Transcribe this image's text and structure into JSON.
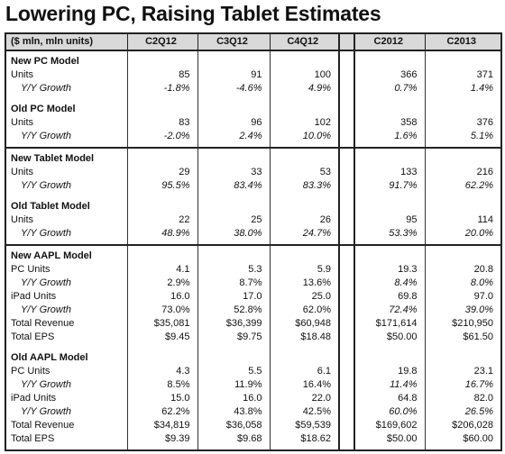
{
  "title": "Lowering PC, Raising Tablet Estimates",
  "header": {
    "label": "($ mln, mln units)",
    "columns": [
      "C2Q12",
      "C3Q12",
      "C4Q12",
      "C2012",
      "C2013"
    ]
  },
  "groups": [
    {
      "sections": [
        {
          "title": "New PC Model",
          "rows": [
            {
              "label": "Units",
              "values": [
                "85",
                "91",
                "100",
                "366",
                "371"
              ],
              "growth": {
                "label": "Y/Y Growth",
                "values": [
                  "-1.8%",
                  "-4.6%",
                  "4.9%",
                  "0.7%",
                  "1.4%"
                ]
              }
            }
          ]
        },
        {
          "title": "Old PC Model",
          "rows": [
            {
              "label": "Units",
              "values": [
                "83",
                "96",
                "102",
                "358",
                "376"
              ],
              "growth": {
                "label": "Y/Y Growth",
                "values": [
                  "-2.0%",
                  "2.4%",
                  "10.0%",
                  "1.6%",
                  "5.1%"
                ]
              }
            }
          ]
        }
      ]
    },
    {
      "sections": [
        {
          "title": "New Tablet Model",
          "rows": [
            {
              "label": "Units",
              "values": [
                "29",
                "33",
                "53",
                "133",
                "216"
              ],
              "growth": {
                "label": "Y/Y Growth",
                "values": [
                  "95.5%",
                  "83.4%",
                  "83.3%",
                  "91.7%",
                  "62.2%"
                ]
              }
            }
          ]
        },
        {
          "title": "Old Tablet Model",
          "rows": [
            {
              "label": "Units",
              "values": [
                "22",
                "25",
                "26",
                "95",
                "114"
              ],
              "growth": {
                "label": "Y/Y Growth",
                "values": [
                  "48.9%",
                  "38.0%",
                  "24.7%",
                  "53.3%",
                  "20.0%"
                ]
              }
            }
          ]
        }
      ]
    },
    {
      "sections": [
        {
          "title": "New AAPL Model",
          "rows": [
            {
              "label": "PC Units",
              "values": [
                "4.1",
                "5.3",
                "5.9",
                "19.3",
                "20.8"
              ],
              "growth": {
                "label": "Y/Y Growth",
                "values": [
                  "2.9%",
                  "8.7%",
                  "13.6%",
                  "8.4%",
                  "8.0%"
                ]
              }
            },
            {
              "label": "iPad Units",
              "values": [
                "16.0",
                "17.0",
                "25.0",
                "69.8",
                "97.0"
              ],
              "growth": {
                "label": "Y/Y Growth",
                "values": [
                  "73.0%",
                  "52.8%",
                  "62.0%",
                  "72.4%",
                  "39.0%"
                ]
              }
            },
            {
              "label": "Total Revenue",
              "values": [
                "$35,081",
                "$36,399",
                "$60,948",
                "$171,614",
                "$210,950"
              ]
            },
            {
              "label": "Total EPS",
              "values": [
                "$9.45",
                "$9.75",
                "$18.48",
                "$50.00",
                "$61.50"
              ]
            }
          ]
        },
        {
          "title": "Old AAPL Model",
          "rows": [
            {
              "label": "PC Units",
              "values": [
                "4.3",
                "5.5",
                "6.1",
                "19.8",
                "23.1"
              ],
              "growth": {
                "label": "Y/Y Growth",
                "values": [
                  "8.5%",
                  "11.9%",
                  "16.4%",
                  "11.4%",
                  "16.7%"
                ]
              }
            },
            {
              "label": "iPad Units",
              "values": [
                "15.0",
                "16.0",
                "22.0",
                "64.8",
                "82.0"
              ],
              "growth": {
                "label": "Y/Y Growth",
                "values": [
                  "62.2%",
                  "43.8%",
                  "42.5%",
                  "60.0%",
                  "26.5%"
                ]
              }
            },
            {
              "label": "Total Revenue",
              "values": [
                "$34,819",
                "$36,058",
                "$59,539",
                "$169,602",
                "$206,028"
              ]
            },
            {
              "label": "Total EPS",
              "values": [
                "$9.39",
                "$9.68",
                "$18.62",
                "$50.00",
                "$60.00"
              ]
            }
          ]
        }
      ]
    }
  ]
}
